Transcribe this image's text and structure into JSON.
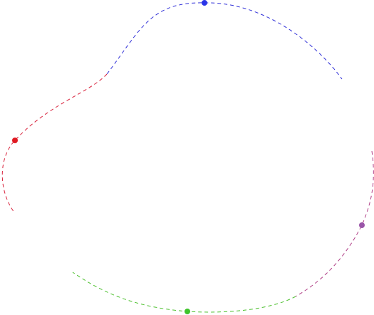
{
  "arcs": [
    {
      "name": "arc-top",
      "color": "#3030d8"
    },
    {
      "name": "arc-left",
      "color": "#d8203a"
    },
    {
      "name": "arc-right",
      "color": "#b03e86"
    },
    {
      "name": "arc-bottom",
      "color": "#4cc02e"
    }
  ],
  "nodes": [
    {
      "name": "node-top",
      "color": "#2a35e8"
    },
    {
      "name": "node-left",
      "color": "#e01a22"
    },
    {
      "name": "node-right",
      "color": "#9a55a8"
    },
    {
      "name": "node-bottom",
      "color": "#3ec42a"
    }
  ]
}
